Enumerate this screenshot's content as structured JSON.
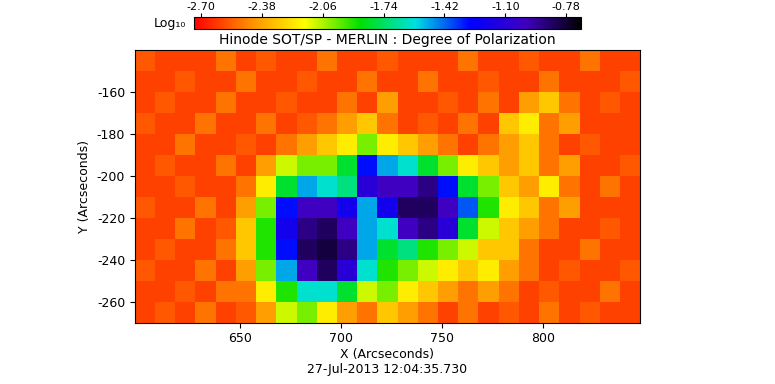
{
  "chart_data": {
    "type": "heatmap",
    "title": "Hinode SOT/SP - MERLIN : Degree of Polarization",
    "x_label": "X (Arcseconds)",
    "y_label": "Y (Arcseconds)",
    "annotation": "27-Jul-2013 12:04:35.730",
    "xlim": [
      598,
      848
    ],
    "ylim": [
      -270,
      -140
    ],
    "xticks": [
      650,
      700,
      750,
      800
    ],
    "yticks": [
      -260,
      -240,
      -220,
      -200,
      -180,
      -160
    ],
    "x": [
      603,
      613,
      623,
      633,
      643,
      653,
      663,
      673,
      683,
      693,
      703,
      713,
      723,
      733,
      743,
      753,
      763,
      773,
      783,
      793,
      803,
      813,
      823,
      833,
      843
    ],
    "y": [
      -265,
      -255,
      -245,
      -235,
      -225,
      -215,
      -205,
      -195,
      -185,
      -175,
      -165,
      -155,
      -145
    ],
    "cells": [
      [
        -2.6,
        -2.55,
        -2.6,
        -2.5,
        -2.6,
        -2.55,
        -2.4,
        -2.1,
        -2.0,
        -2.2,
        -2.4,
        -2.5,
        -2.3,
        -2.4,
        -2.5,
        -2.6,
        -2.5,
        -2.6,
        -2.55,
        -2.6,
        -2.5,
        -2.6,
        -2.55,
        -2.6,
        -2.6
      ],
      [
        -2.6,
        -2.6,
        -2.55,
        -2.6,
        -2.5,
        -2.5,
        -2.2,
        -1.9,
        -1.6,
        -1.6,
        -1.8,
        -2.1,
        -2.0,
        -2.2,
        -2.3,
        -2.4,
        -2.5,
        -2.4,
        -2.5,
        -2.6,
        -2.55,
        -2.6,
        -2.6,
        -2.5,
        -2.6
      ],
      [
        -2.55,
        -2.6,
        -2.6,
        -2.5,
        -2.6,
        -2.4,
        -2.0,
        -1.5,
        -1.0,
        -0.85,
        -1.1,
        -1.6,
        -1.9,
        -2.0,
        -2.1,
        -2.2,
        -2.3,
        -2.2,
        -2.4,
        -2.5,
        -2.6,
        -2.55,
        -2.6,
        -2.6,
        -2.55
      ],
      [
        -2.6,
        -2.55,
        -2.6,
        -2.6,
        -2.5,
        -2.3,
        -1.9,
        -1.3,
        -0.85,
        -0.8,
        -0.9,
        -1.5,
        -1.8,
        -1.7,
        -1.9,
        -2.0,
        -2.1,
        -2.3,
        -2.3,
        -2.5,
        -2.6,
        -2.6,
        -2.5,
        -2.6,
        -2.6
      ],
      [
        -2.6,
        -2.6,
        -2.5,
        -2.6,
        -2.55,
        -2.3,
        -1.9,
        -1.2,
        -0.9,
        -0.85,
        -1.0,
        -1.5,
        -1.6,
        -1.0,
        -0.9,
        -1.1,
        -1.8,
        -2.1,
        -2.3,
        -2.4,
        -2.5,
        -2.6,
        -2.6,
        -2.55,
        -2.6
      ],
      [
        -2.55,
        -2.6,
        -2.6,
        -2.5,
        -2.6,
        -2.4,
        -2.0,
        -1.3,
        -1.0,
        -1.0,
        -1.2,
        -1.5,
        -1.2,
        -0.85,
        -0.85,
        -1.0,
        -1.4,
        -1.9,
        -2.2,
        -2.3,
        -2.5,
        -2.4,
        -2.6,
        -2.6,
        -2.6
      ],
      [
        -2.6,
        -2.6,
        -2.55,
        -2.6,
        -2.6,
        -2.5,
        -2.2,
        -1.8,
        -1.5,
        -1.6,
        -1.7,
        -1.1,
        -1.0,
        -1.0,
        -0.9,
        -1.3,
        -1.8,
        -2.0,
        -2.3,
        -2.4,
        -2.2,
        -2.5,
        -2.6,
        -2.5,
        -2.6
      ],
      [
        -2.6,
        -2.55,
        -2.6,
        -2.6,
        -2.5,
        -2.6,
        -2.4,
        -2.1,
        -2.0,
        -2.0,
        -1.8,
        -1.3,
        -1.5,
        -1.6,
        -1.8,
        -2.0,
        -2.2,
        -2.3,
        -2.4,
        -2.3,
        -2.5,
        -2.4,
        -2.6,
        -2.6,
        -2.55
      ],
      [
        -2.6,
        -2.6,
        -2.5,
        -2.6,
        -2.6,
        -2.55,
        -2.6,
        -2.5,
        -2.4,
        -2.3,
        -2.2,
        -2.0,
        -2.2,
        -2.3,
        -2.4,
        -2.5,
        -2.6,
        -2.5,
        -2.4,
        -2.3,
        -2.5,
        -2.6,
        -2.55,
        -2.6,
        -2.6
      ],
      [
        -2.55,
        -2.6,
        -2.6,
        -2.5,
        -2.6,
        -2.6,
        -2.5,
        -2.6,
        -2.55,
        -2.5,
        -2.4,
        -2.3,
        -2.5,
        -2.6,
        -2.55,
        -2.6,
        -2.5,
        -2.6,
        -2.3,
        -2.2,
        -2.5,
        -2.4,
        -2.6,
        -2.6,
        -2.6
      ],
      [
        -2.6,
        -2.55,
        -2.6,
        -2.6,
        -2.5,
        -2.6,
        -2.6,
        -2.55,
        -2.6,
        -2.6,
        -2.5,
        -2.6,
        -2.4,
        -2.6,
        -2.6,
        -2.55,
        -2.6,
        -2.5,
        -2.6,
        -2.4,
        -2.3,
        -2.5,
        -2.6,
        -2.55,
        -2.6
      ],
      [
        -2.6,
        -2.6,
        -2.55,
        -2.6,
        -2.6,
        -2.5,
        -2.6,
        -2.6,
        -2.55,
        -2.6,
        -2.6,
        -2.5,
        -2.6,
        -2.6,
        -2.5,
        -2.6,
        -2.6,
        -2.55,
        -2.6,
        -2.6,
        -2.5,
        -2.6,
        -2.6,
        -2.6,
        -2.55
      ],
      [
        -2.55,
        -2.6,
        -2.6,
        -2.6,
        -2.5,
        -2.6,
        -2.55,
        -2.6,
        -2.6,
        -2.5,
        -2.6,
        -2.6,
        -2.55,
        -2.6,
        -2.6,
        -2.6,
        -2.5,
        -2.6,
        -2.6,
        -2.55,
        -2.6,
        -2.6,
        -2.5,
        -2.6,
        -2.6
      ]
    ],
    "colorbar": {
      "label": "Log₁₀",
      "range": [
        -2.74,
        -0.7
      ],
      "ticks": [
        {
          "value": -2.7,
          "label": "-2.70"
        },
        -2.38,
        -2.06,
        -1.74,
        -1.42,
        {
          "value": -1.1,
          "label": "-1.10"
        },
        -0.78
      ]
    }
  }
}
